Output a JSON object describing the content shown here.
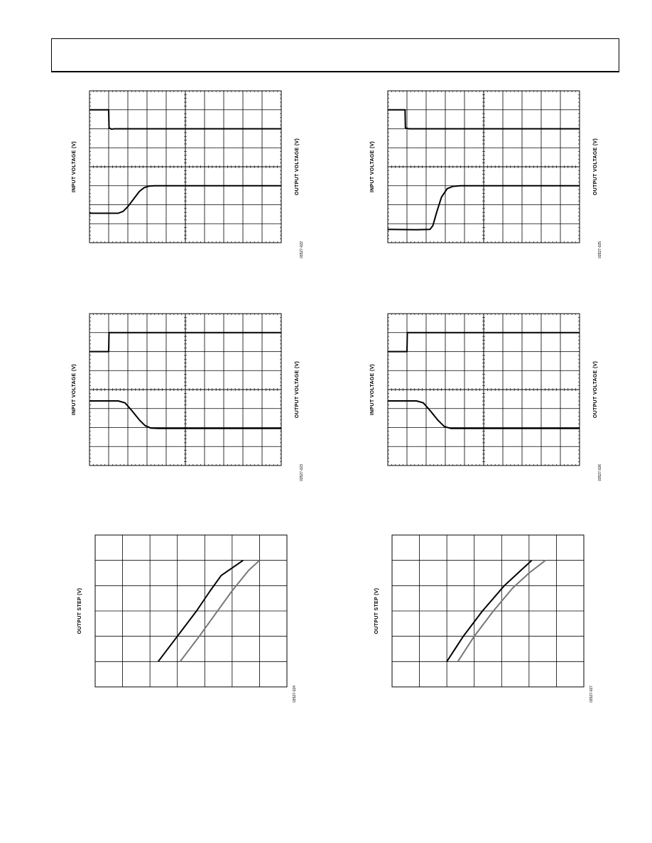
{
  "page": {
    "header_box": ""
  },
  "chart_data": [
    {
      "type": "line",
      "id": "fig1",
      "kind": "scope",
      "divisions": [
        10,
        8
      ],
      "labels": {
        "left": "INPUT VOLTAGE (V)",
        "right": "OUTPUT VOLTAGE (V)"
      },
      "code": "03527-022",
      "series": [
        {
          "role": "input",
          "color": "#000000",
          "points": [
            [
              0,
              7.0
            ],
            [
              1.0,
              7.0
            ],
            [
              1.02,
              6.05
            ],
            [
              1.15,
              5.98
            ],
            [
              1.3,
              6.0
            ],
            [
              10,
              6.0
            ]
          ]
        },
        {
          "role": "output",
          "color": "#000000",
          "points": [
            [
              0,
              1.55
            ],
            [
              1.5,
              1.55
            ],
            [
              1.75,
              1.65
            ],
            [
              2.0,
              1.9
            ],
            [
              2.3,
              2.3
            ],
            [
              2.6,
              2.7
            ],
            [
              2.85,
              2.9
            ],
            [
              3.1,
              2.98
            ],
            [
              3.4,
              3.0
            ],
            [
              10,
              3.0
            ]
          ]
        }
      ]
    },
    {
      "type": "line",
      "id": "fig2",
      "kind": "scope",
      "divisions": [
        10,
        8
      ],
      "labels": {
        "left": "INPUT VOLTAGE (V)",
        "right": "OUTPUT VOLTAGE (V)"
      },
      "code": "03527-025",
      "series": [
        {
          "role": "input",
          "color": "#000000",
          "points": [
            [
              0,
              7.0
            ],
            [
              0.9,
              7.0
            ],
            [
              0.92,
              6.05
            ],
            [
              1.1,
              6.0
            ],
            [
              10,
              6.0
            ]
          ]
        },
        {
          "role": "output",
          "color": "#000000",
          "points": [
            [
              0,
              0.7
            ],
            [
              1.5,
              0.68
            ],
            [
              2.2,
              0.7
            ],
            [
              2.35,
              0.9
            ],
            [
              2.55,
              1.6
            ],
            [
              2.8,
              2.4
            ],
            [
              3.1,
              2.85
            ],
            [
              3.4,
              2.97
            ],
            [
              3.8,
              3.0
            ],
            [
              10,
              3.0
            ]
          ]
        }
      ]
    },
    {
      "type": "line",
      "id": "fig3",
      "kind": "scope",
      "divisions": [
        10,
        8
      ],
      "labels": {
        "left": "INPUT VOLTAGE (V)",
        "right": "OUTPUT VOLTAGE (V)"
      },
      "code": "03527-023",
      "series": [
        {
          "role": "input",
          "color": "#000000",
          "points": [
            [
              0,
              6.0
            ],
            [
              1.0,
              6.0
            ],
            [
              1.02,
              7.0
            ],
            [
              10,
              7.0
            ]
          ]
        },
        {
          "role": "output",
          "color": "#000000",
          "points": [
            [
              0,
              3.4
            ],
            [
              1.5,
              3.4
            ],
            [
              1.85,
              3.3
            ],
            [
              2.2,
              2.9
            ],
            [
              2.6,
              2.4
            ],
            [
              2.9,
              2.1
            ],
            [
              3.2,
              1.97
            ],
            [
              3.6,
              1.95
            ],
            [
              10,
              1.95
            ]
          ]
        }
      ]
    },
    {
      "type": "line",
      "id": "fig4",
      "kind": "scope",
      "divisions": [
        10,
        8
      ],
      "labels": {
        "left": "INPUT VOLTAGE (V)",
        "right": "OUTPUT VOLTAGE (V)"
      },
      "code": "03527-026",
      "series": [
        {
          "role": "input",
          "color": "#000000",
          "points": [
            [
              0,
              6.0
            ],
            [
              1.0,
              6.0
            ],
            [
              1.02,
              7.0
            ],
            [
              10,
              7.0
            ]
          ]
        },
        {
          "role": "output",
          "color": "#000000",
          "points": [
            [
              0,
              3.4
            ],
            [
              1.5,
              3.4
            ],
            [
              1.85,
              3.3
            ],
            [
              2.2,
              2.9
            ],
            [
              2.6,
              2.4
            ],
            [
              2.95,
              2.05
            ],
            [
              3.3,
              1.95
            ],
            [
              10,
              1.95
            ]
          ]
        }
      ]
    },
    {
      "type": "line",
      "id": "fig5",
      "kind": "plot",
      "divisions": [
        7,
        6
      ],
      "labels": {
        "left": "OUTPUT STEP (V)"
      },
      "code": "03527-024",
      "series": [
        {
          "role": "curve-a",
          "color": "#000000",
          "points": [
            [
              2.3,
              1.0
            ],
            [
              3.0,
              2.0
            ],
            [
              3.7,
              3.0
            ],
            [
              4.2,
              3.8
            ],
            [
              4.6,
              4.4
            ],
            [
              5.4,
              5.0
            ]
          ]
        },
        {
          "role": "curve-b",
          "color": "#777777",
          "points": [
            [
              3.1,
              1.0
            ],
            [
              3.8,
              2.0
            ],
            [
              4.4,
              2.9
            ],
            [
              5.0,
              3.8
            ],
            [
              5.6,
              4.6
            ],
            [
              6.0,
              5.0
            ]
          ]
        }
      ]
    },
    {
      "type": "line",
      "id": "fig6",
      "kind": "plot",
      "divisions": [
        7,
        6
      ],
      "labels": {
        "left": "OUTPUT STEP (V)"
      },
      "code": "03527-027",
      "series": [
        {
          "role": "curve-a",
          "color": "#000000",
          "points": [
            [
              2.0,
              1.0
            ],
            [
              2.6,
              2.0
            ],
            [
              3.3,
              3.0
            ],
            [
              4.1,
              4.0
            ],
            [
              4.7,
              4.6
            ],
            [
              5.1,
              5.0
            ]
          ]
        },
        {
          "role": "curve-b",
          "color": "#777777",
          "points": [
            [
              2.4,
              1.0
            ],
            [
              3.0,
              2.0
            ],
            [
              3.7,
              3.0
            ],
            [
              4.4,
              3.9
            ],
            [
              5.0,
              4.5
            ],
            [
              5.6,
              5.0
            ]
          ]
        }
      ]
    }
  ]
}
